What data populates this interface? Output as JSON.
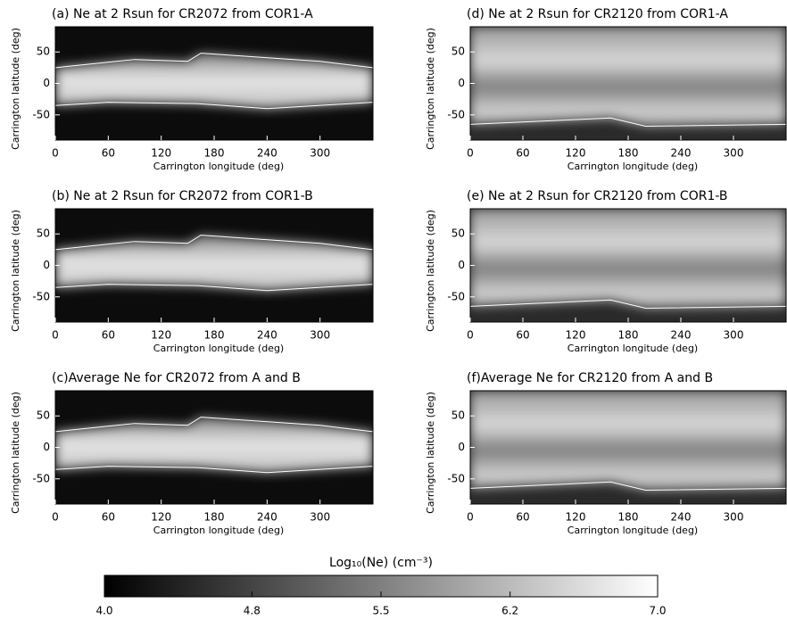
{
  "chart_data": [
    {
      "type": "heatmap",
      "title": "(a) Ne at 2 Rsun for CR2072 from COR1-A",
      "xlabel": "Carrington longitude (deg)",
      "ylabel": "Carrington latitude (deg)",
      "xlim": [
        0,
        360
      ],
      "xticks": [
        0,
        60,
        120,
        180,
        240,
        300
      ],
      "ylim": [
        -90,
        90
      ],
      "yticks": [
        -50,
        0,
        50
      ]
    },
    {
      "type": "heatmap",
      "title": "(b) Ne at 2 Rsun for CR2072 from COR1-B",
      "xlabel": "Carrington longitude (deg)",
      "ylabel": "Carrington latitude (deg)",
      "xlim": [
        0,
        360
      ],
      "xticks": [
        0,
        60,
        120,
        180,
        240,
        300
      ],
      "ylim": [
        -90,
        90
      ],
      "yticks": [
        -50,
        0,
        50
      ]
    },
    {
      "type": "heatmap",
      "title": "(c)Average Ne  for CR2072 from A and B",
      "xlabel": "Carrington longitude (deg)",
      "ylabel": "Carrington latitude (deg)",
      "xlim": [
        0,
        360
      ],
      "xticks": [
        0,
        60,
        120,
        180,
        240,
        300
      ],
      "ylim": [
        -90,
        90
      ],
      "yticks": [
        -50,
        0,
        50
      ]
    },
    {
      "type": "heatmap",
      "title": "(d) Ne at 2 Rsun for CR2120 from COR1-A",
      "xlabel": "Carrington longitude (deg)",
      "ylabel": "Carrington latitude (deg)",
      "xlim": [
        0,
        360
      ],
      "xticks": [
        0,
        60,
        120,
        180,
        240,
        300
      ],
      "ylim": [
        -90,
        90
      ],
      "yticks": [
        -50,
        0,
        50
      ]
    },
    {
      "type": "heatmap",
      "title": "(e) Ne at 2 Rsun for CR2120 from COR1-B",
      "xlabel": "Carrington longitude (deg)",
      "ylabel": "Carrington latitude (deg)",
      "xlim": [
        0,
        360
      ],
      "xticks": [
        0,
        60,
        120,
        180,
        240,
        300
      ],
      "ylim": [
        -90,
        90
      ],
      "yticks": [
        -50,
        0,
        50
      ]
    },
    {
      "type": "heatmap",
      "title": "(f)Average Ne  for CR2120 from A and B",
      "xlabel": "Carrington longitude (deg)",
      "ylabel": "Carrington latitude (deg)",
      "xlim": [
        0,
        360
      ],
      "xticks": [
        0,
        60,
        120,
        180,
        240,
        300
      ],
      "ylim": [
        -90,
        90
      ],
      "yticks": [
        -50,
        0,
        50
      ]
    },
    {
      "type": "colorbar",
      "title": "Log₁₀(Ne)  (cm⁻³)",
      "colors": [
        "#000000",
        "#ffffff"
      ],
      "xlim": [
        4.0,
        7.0
      ],
      "xticks": [
        {
          "value": 4,
          "label": "4.0"
        },
        {
          "value": 4.8,
          "label": "4.8"
        },
        {
          "value": 5.5,
          "label": "5.5"
        },
        {
          "value": 6.2,
          "label": "6.2"
        },
        {
          "value": 7,
          "label": "7.0"
        }
      ]
    }
  ]
}
